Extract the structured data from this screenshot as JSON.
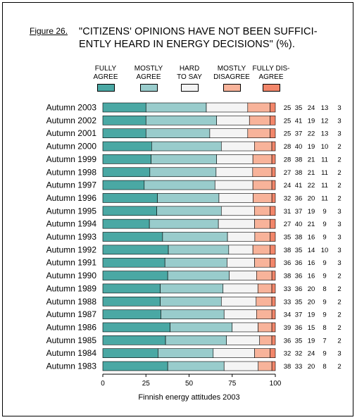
{
  "figure_label": "Figure 26.",
  "title_line1": "\"CITIZENS' OPINIONS HAVE NOT BEEN SUFFICI-",
  "title_line2": "ENTLY HEARD IN ENERGY DECISIONS\" (%).",
  "colors": {
    "fully_agree": "#4aa8a4",
    "mostly_agree": "#99cccc",
    "hard_to_say": "#f4f4f4",
    "mostly_disagree": "#f8b39a",
    "fully_disagree": "#f2866a"
  },
  "chart_data": {
    "type": "bar",
    "orientation": "horizontal",
    "stacked": true,
    "xlabel": "Finnish energy attitudes 2003",
    "xlim": [
      0,
      100
    ],
    "xticks": [
      0,
      25,
      50,
      75,
      100
    ],
    "legend_placement": "top",
    "categories": [
      "Autumn 2003",
      "Autumn 2002",
      "Autumn 2001",
      "Autumn 2000",
      "Autumn 1999",
      "Autumn 1998",
      "Autumn 1997",
      "Autumn 1996",
      "Autumn 1995",
      "Autumn 1994",
      "Autumn 1993",
      "Autumn 1992",
      "Autumn 1991",
      "Autumn 1990",
      "Autumn 1989",
      "Autumn 1988",
      "Autumn 1987",
      "Autumn 1986",
      "Autumn 1985",
      "Autumn 1984",
      "Autumn 1983"
    ],
    "series": [
      {
        "name": "FULLY AGREE",
        "label_lines": [
          "FULLY",
          "AGREE"
        ],
        "values": [
          25,
          25,
          25,
          28,
          28,
          27,
          24,
          32,
          31,
          27,
          35,
          38,
          36,
          38,
          33,
          33,
          34,
          39,
          36,
          32,
          38
        ]
      },
      {
        "name": "MOSTLY AGREE",
        "label_lines": [
          "MOSTLY",
          "AGREE"
        ],
        "values": [
          35,
          41,
          37,
          40,
          38,
          38,
          41,
          36,
          37,
          40,
          38,
          35,
          36,
          36,
          36,
          35,
          37,
          36,
          35,
          32,
          33
        ]
      },
      {
        "name": "HARD TO SAY",
        "label_lines": [
          "HARD",
          "TO SAY"
        ],
        "values": [
          24,
          19,
          22,
          19,
          21,
          21,
          22,
          20,
          19,
          21,
          16,
          14,
          16,
          16,
          20,
          20,
          19,
          15,
          19,
          24,
          20
        ]
      },
      {
        "name": "MOSTLY DISAGREE",
        "label_lines": [
          "MOSTLY",
          "DISAGREE"
        ],
        "values": [
          13,
          12,
          13,
          10,
          11,
          11,
          11,
          11,
          9,
          9,
          9,
          10,
          9,
          9,
          8,
          9,
          9,
          8,
          7,
          9,
          8
        ]
      },
      {
        "name": "FULLY DISAGREE",
        "label_lines": [
          "FULLY DIS-",
          "AGREE"
        ],
        "values": [
          3,
          3,
          3,
          2,
          2,
          2,
          2,
          2,
          3,
          3,
          3,
          3,
          3,
          2,
          2,
          2,
          2,
          2,
          2,
          3,
          2
        ]
      }
    ]
  }
}
